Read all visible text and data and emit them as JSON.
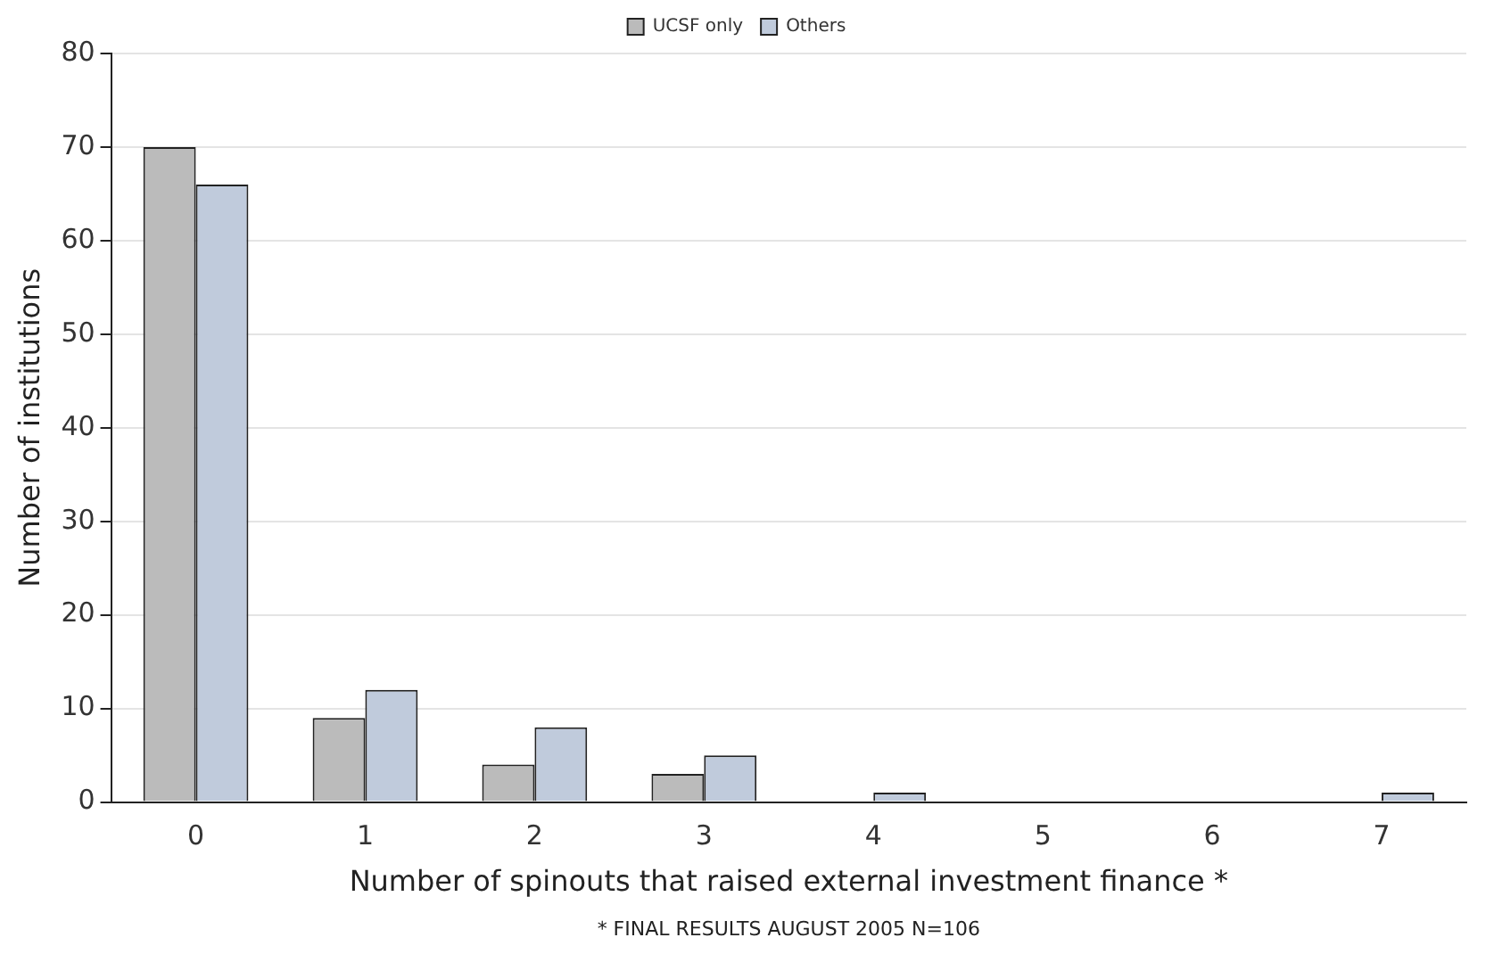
{
  "chart_data": {
    "type": "bar",
    "xlabel": "Number of spinouts that raised external investment finance *",
    "ylabel": "Number of institutions",
    "categories": [
      "0",
      "1",
      "2",
      "3",
      "4",
      "5",
      "6",
      "7"
    ],
    "series": [
      {
        "name": "UCSF only",
        "color": "#bbbbbb",
        "values": [
          70,
          9,
          4,
          3,
          0,
          0,
          0,
          0
        ]
      },
      {
        "name": "Others",
        "color": "#c0cbdc",
        "values": [
          66,
          12,
          8,
          5,
          1,
          0,
          0,
          1
        ]
      }
    ],
    "ylim": [
      0,
      80
    ],
    "yticks": [
      0,
      10,
      20,
      30,
      40,
      50,
      60,
      70,
      80
    ],
    "grid": "y",
    "legend": "top",
    "annotations": [
      "* FINAL RESULTS AUGUST 2005 N=106"
    ]
  }
}
